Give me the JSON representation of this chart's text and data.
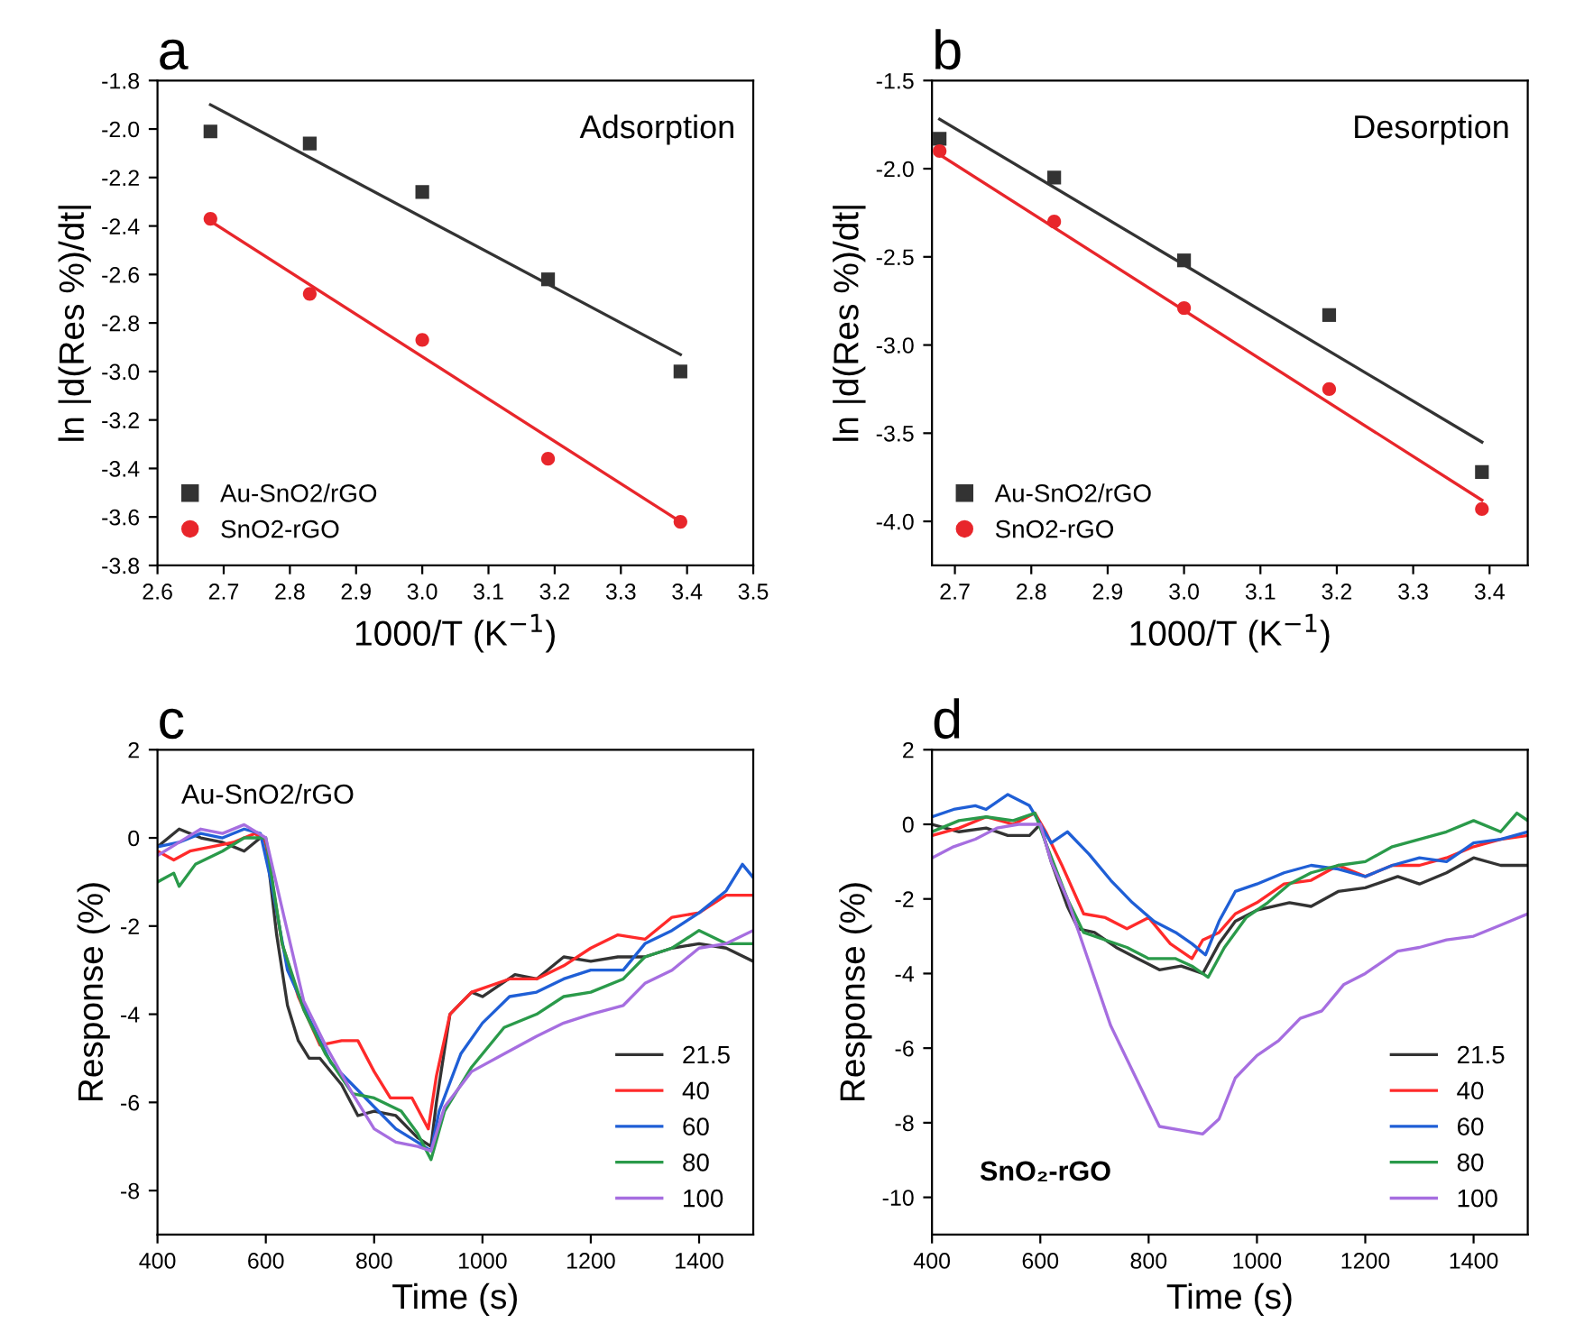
{
  "chart_data": [
    {
      "type": "scatter",
      "title": "a",
      "xlabel": "1000/T (K$^{−1}$)",
      "ylabel": "ln |d(Res %)/dt|",
      "annotations": [
        "Adsorption"
      ],
      "xlim": [
        2.6,
        3.5
      ],
      "xticks": [
        2.6,
        2.7,
        2.8,
        2.9,
        {
          "value": 3,
          "label": "3.0"
        },
        3.1,
        3.2,
        3.3,
        3.4,
        3.5
      ],
      "ylim": [
        -3.8,
        -1.8
      ],
      "yticks": [
        -3.8,
        -3.6,
        -3.4,
        -3.2,
        {
          "value": -3,
          "label": "-3.0"
        },
        -2.8,
        -2.6,
        -2.4,
        -2.2,
        {
          "value": -2,
          "label": "-2.0"
        },
        -1.8
      ],
      "legend": "bottom left",
      "grid": false,
      "x": [
        2.68,
        2.83,
        3.0,
        3.19,
        3.39
      ],
      "series": [
        {
          "name": "Au-SnO2/rGO",
          "color": "#333333",
          "marker": "square",
          "values": [
            -2.01,
            -2.06,
            -2.26,
            -2.62,
            -3.0
          ]
        },
        {
          "name": "SnO2-rGO",
          "color": "#e8262b",
          "marker": "circle",
          "values": [
            -2.37,
            -2.68,
            -2.87,
            -3.36,
            -3.62
          ]
        },
        {
          "type": "line",
          "color": "#333333",
          "x": [
            2.68,
            3.39
          ],
          "values": [
            -1.9,
            -2.93
          ]
        },
        {
          "type": "line",
          "color": "#e8262b",
          "x": [
            2.68,
            3.39
          ],
          "values": [
            -2.38,
            -3.62
          ]
        }
      ]
    },
    {
      "type": "scatter",
      "title": "b",
      "xlabel": "1000/T (K$^{−1}$)",
      "ylabel": "ln |d(Res %)/dt|",
      "annotations": [
        "Desorption"
      ],
      "xlim": [
        2.67,
        3.45
      ],
      "xticks": [
        2.7,
        2.8,
        2.9,
        {
          "value": 3,
          "label": "3.0"
        },
        3.1,
        3.2,
        3.3,
        3.4
      ],
      "ylim": [
        -4.25,
        -1.5
      ],
      "yticks": [
        {
          "value": -4,
          "label": "-4.0"
        },
        -3.5,
        {
          "value": -3,
          "label": "-3.0"
        },
        -2.5,
        {
          "value": -2,
          "label": "-2.0"
        },
        -1.5
      ],
      "legend": "bottom left",
      "grid": false,
      "x": [
        2.68,
        2.83,
        3.0,
        3.19,
        3.39
      ],
      "series": [
        {
          "name": "Au-SnO2/rGO",
          "color": "#333333",
          "marker": "square",
          "values": [
            -1.83,
            -2.05,
            -2.52,
            -2.83,
            -3.72
          ]
        },
        {
          "name": "SnO2-rGO",
          "color": "#e8262b",
          "marker": "circle",
          "values": [
            -1.9,
            -2.3,
            -2.79,
            -3.25,
            -3.93
          ]
        },
        {
          "type": "line",
          "color": "#333333",
          "x": [
            2.68,
            3.39
          ],
          "values": [
            -1.72,
            -3.55
          ]
        },
        {
          "type": "line",
          "color": "#e8262b",
          "x": [
            2.68,
            3.39
          ],
          "values": [
            -1.92,
            -3.88
          ]
        }
      ]
    },
    {
      "type": "line",
      "title": "c",
      "xlabel": "Time (s)",
      "ylabel": "Response (%)",
      "annotations": [
        "Au-SnO2/rGO"
      ],
      "xlim": [
        400,
        1500
      ],
      "xticks": [
        400,
        600,
        800,
        1000,
        1200,
        1400
      ],
      "ylim": [
        -9,
        2
      ],
      "yticks": [
        -8,
        -6,
        -4,
        -2,
        0,
        2
      ],
      "legend": "bottom right",
      "grid": false,
      "marker": "none",
      "series": [
        {
          "name": "21.5",
          "color": "#333333",
          "x": [
            400,
            440,
            480,
            520,
            560,
            590,
            600,
            620,
            640,
            660,
            680,
            700,
            740,
            770,
            800,
            840,
            880,
            905,
            915,
            940,
            980,
            1000,
            1060,
            1100,
            1150,
            1200,
            1250,
            1300,
            1350,
            1400,
            1450,
            1500
          ],
          "values": [
            -0.2,
            0.2,
            0.0,
            -0.1,
            -0.3,
            0.0,
            -0.1,
            -2.2,
            -3.8,
            -4.6,
            -5.0,
            -5.0,
            -5.6,
            -6.3,
            -6.2,
            -6.3,
            -6.8,
            -7.0,
            -6.0,
            -4.0,
            -3.5,
            -3.6,
            -3.1,
            -3.2,
            -2.7,
            -2.8,
            -2.7,
            -2.7,
            -2.5,
            -2.4,
            -2.5,
            -2.8
          ]
        },
        {
          "name": "40",
          "color": "#ff2a2a",
          "x": [
            400,
            430,
            460,
            500,
            540,
            580,
            600,
            630,
            660,
            700,
            740,
            770,
            800,
            830,
            870,
            900,
            915,
            940,
            980,
            1050,
            1100,
            1150,
            1200,
            1250,
            1300,
            1350,
            1400,
            1450,
            1500
          ],
          "values": [
            -0.3,
            -0.5,
            -0.3,
            -0.2,
            -0.1,
            0.1,
            -0.1,
            -2.4,
            -3.6,
            -4.7,
            -4.6,
            -4.6,
            -5.3,
            -5.9,
            -5.9,
            -6.6,
            -5.4,
            -4.0,
            -3.5,
            -3.2,
            -3.2,
            -2.9,
            -2.5,
            -2.2,
            -2.3,
            -1.8,
            -1.7,
            -1.3,
            -1.3
          ]
        },
        {
          "name": "60",
          "color": "#1f5fd6",
          "x": [
            400,
            440,
            480,
            520,
            560,
            590,
            610,
            640,
            680,
            720,
            760,
            800,
            840,
            880,
            905,
            920,
            960,
            1000,
            1050,
            1100,
            1150,
            1200,
            1260,
            1300,
            1350,
            1400,
            1450,
            1480,
            1500
          ],
          "values": [
            -0.2,
            -0.1,
            0.1,
            0.0,
            0.2,
            0.1,
            -1.0,
            -3.0,
            -4.1,
            -5.1,
            -5.6,
            -6.1,
            -6.6,
            -6.9,
            -7.1,
            -6.2,
            -4.9,
            -4.2,
            -3.6,
            -3.5,
            -3.2,
            -3.0,
            -3.0,
            -2.4,
            -2.1,
            -1.7,
            -1.2,
            -0.6,
            -0.9
          ]
        },
        {
          "name": "80",
          "color": "#2a9a4a",
          "x": [
            400,
            430,
            440,
            470,
            520,
            560,
            600,
            630,
            670,
            710,
            760,
            800,
            850,
            880,
            905,
            930,
            980,
            1040,
            1100,
            1150,
            1200,
            1260,
            1300,
            1350,
            1400,
            1450,
            1500
          ],
          "values": [
            -1.0,
            -0.8,
            -1.1,
            -0.6,
            -0.3,
            0.0,
            0.0,
            -2.4,
            -3.9,
            -4.9,
            -5.8,
            -5.9,
            -6.2,
            -6.7,
            -7.3,
            -6.2,
            -5.2,
            -4.3,
            -4.0,
            -3.6,
            -3.5,
            -3.2,
            -2.7,
            -2.5,
            -2.1,
            -2.4,
            -2.4
          ]
        },
        {
          "name": "100",
          "color": "#a66ee0",
          "x": [
            400,
            440,
            480,
            520,
            560,
            600,
            630,
            670,
            710,
            760,
            800,
            840,
            880,
            905,
            930,
            980,
            1040,
            1100,
            1150,
            1200,
            1260,
            1300,
            1350,
            1400,
            1450,
            1500
          ],
          "values": [
            -0.4,
            -0.1,
            0.2,
            0.1,
            0.3,
            0.0,
            -1.6,
            -3.7,
            -4.7,
            -5.8,
            -6.6,
            -6.9,
            -7.0,
            -7.1,
            -6.1,
            -5.3,
            -4.9,
            -4.5,
            -4.2,
            -4.0,
            -3.8,
            -3.3,
            -3.0,
            -2.5,
            -2.4,
            -2.1
          ]
        }
      ]
    },
    {
      "type": "line",
      "title": "d",
      "xlabel": "Time (s)",
      "ylabel": "Response (%)",
      "annotations": [
        "SnO₂-rGO"
      ],
      "xlim": [
        400,
        1500
      ],
      "xticks": [
        400,
        600,
        800,
        1000,
        1200,
        1400
      ],
      "ylim": [
        -11,
        2
      ],
      "yticks": [
        -10,
        -8,
        -6,
        -4,
        -2,
        0,
        2
      ],
      "legend": "bottom right",
      "grid": false,
      "marker": "none",
      "series": [
        {
          "name": "21.5",
          "color": "#333333",
          "x": [
            400,
            450,
            500,
            540,
            580,
            600,
            620,
            650,
            670,
            700,
            740,
            780,
            820,
            860,
            900,
            930,
            960,
            1000,
            1060,
            1100,
            1150,
            1200,
            1260,
            1300,
            1350,
            1400,
            1450,
            1500
          ],
          "values": [
            0.0,
            -0.2,
            -0.1,
            -0.3,
            -0.3,
            0.0,
            -1.0,
            -2.2,
            -2.8,
            -2.9,
            -3.3,
            -3.6,
            -3.9,
            -3.8,
            -4.0,
            -3.2,
            -2.6,
            -2.3,
            -2.1,
            -2.2,
            -1.8,
            -1.7,
            -1.4,
            -1.6,
            -1.3,
            -0.9,
            -1.1,
            -1.1
          ]
        },
        {
          "name": "40",
          "color": "#ff2a2a",
          "x": [
            400,
            450,
            500,
            550,
            590,
            610,
            640,
            680,
            720,
            760,
            800,
            840,
            880,
            900,
            930,
            960,
            1000,
            1050,
            1100,
            1150,
            1200,
            1250,
            1300,
            1350,
            1400,
            1450,
            1500
          ],
          "values": [
            -0.3,
            -0.1,
            0.2,
            0.0,
            0.3,
            -0.2,
            -1.1,
            -2.4,
            -2.5,
            -2.8,
            -2.5,
            -3.2,
            -3.6,
            -3.1,
            -2.9,
            -2.4,
            -2.1,
            -1.6,
            -1.5,
            -1.1,
            -1.4,
            -1.1,
            -1.1,
            -0.9,
            -0.6,
            -0.4,
            -0.3
          ]
        },
        {
          "name": "60",
          "color": "#1f5fd6",
          "x": [
            400,
            440,
            480,
            500,
            540,
            580,
            600,
            620,
            650,
            690,
            730,
            770,
            810,
            850,
            880,
            905,
            930,
            960,
            1000,
            1050,
            1100,
            1150,
            1200,
            1250,
            1300,
            1350,
            1400,
            1450,
            1500
          ],
          "values": [
            0.2,
            0.4,
            0.5,
            0.4,
            0.8,
            0.5,
            0.0,
            -0.5,
            -0.2,
            -0.8,
            -1.5,
            -2.1,
            -2.6,
            -2.9,
            -3.2,
            -3.5,
            -2.6,
            -1.8,
            -1.6,
            -1.3,
            -1.1,
            -1.2,
            -1.4,
            -1.1,
            -0.9,
            -1.0,
            -0.5,
            -0.4,
            -0.2
          ]
        },
        {
          "name": "80",
          "color": "#2a9a4a",
          "x": [
            400,
            450,
            500,
            550,
            590,
            610,
            650,
            680,
            720,
            760,
            800,
            850,
            880,
            910,
            940,
            980,
            1020,
            1060,
            1100,
            1150,
            1200,
            1250,
            1300,
            1350,
            1400,
            1450,
            1480,
            1500
          ],
          "values": [
            -0.2,
            0.1,
            0.2,
            0.1,
            0.3,
            -0.5,
            -2.0,
            -2.9,
            -3.1,
            -3.3,
            -3.6,
            -3.6,
            -3.8,
            -4.1,
            -3.3,
            -2.5,
            -2.1,
            -1.6,
            -1.3,
            -1.1,
            -1.0,
            -0.6,
            -0.4,
            -0.2,
            0.1,
            -0.2,
            0.3,
            0.1
          ]
        },
        {
          "name": "100",
          "color": "#a66ee0",
          "x": [
            400,
            440,
            480,
            520,
            560,
            600,
            620,
            650,
            690,
            730,
            770,
            800,
            820,
            860,
            900,
            930,
            960,
            1000,
            1040,
            1080,
            1120,
            1160,
            1200,
            1260,
            1300,
            1350,
            1400,
            1450,
            1500
          ],
          "values": [
            -0.9,
            -0.6,
            -0.4,
            -0.1,
            0.0,
            0.0,
            -1.0,
            -2.0,
            -3.7,
            -5.4,
            -6.6,
            -7.5,
            -8.1,
            -8.2,
            -8.3,
            -7.9,
            -6.8,
            -6.2,
            -5.8,
            -5.2,
            -5.0,
            -4.3,
            -4.0,
            -3.4,
            -3.3,
            -3.1,
            -3.0,
            -2.7,
            -2.4
          ]
        }
      ]
    }
  ]
}
